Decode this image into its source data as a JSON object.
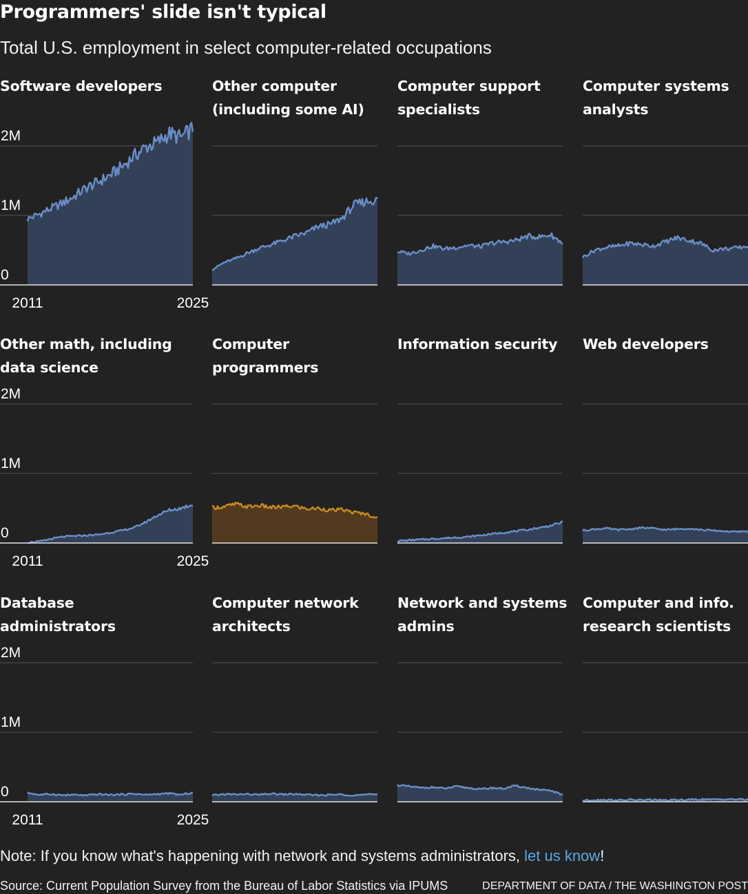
{
  "title": "Programmers' slide isn't typical",
  "subtitle": "Total U.S. employment in select computer-related occupations",
  "note": {
    "text": "Note: If you know what's happening with network and systems administrators, ",
    "link_text": "let us know",
    "suffix": "!"
  },
  "source": "Source: Current Population Survey from the Bureau of Labor Statistics via IPUMS",
  "credit": "DEPARTMENT OF DATA / THE WASHINGTON POST",
  "colors": {
    "background": "#222222",
    "default_line": "#6a8fc8",
    "default_fill": "#334158",
    "highlight_line": "#c98a1e",
    "highlight_fill": "#523a20",
    "gridline": "#4a4a4a",
    "baseline": "#e6e6e6"
  },
  "chart_data": {
    "type": "area",
    "small_multiples": true,
    "y_ticks": [
      "0",
      "1M",
      "2M"
    ],
    "y_tick_values": [
      0,
      1000000,
      2000000
    ],
    "ylim": [
      0,
      2000000
    ],
    "x_ticks": [
      "2011",
      "2025"
    ],
    "xlim": [
      2011,
      2025
    ],
    "grid": true,
    "panels": [
      {
        "name": "Software developers",
        "highlight": false,
        "x": [
          2011,
          2012,
          2013,
          2014,
          2015,
          2016,
          2017,
          2018,
          2019,
          2020,
          2021,
          2022,
          2023,
          2024,
          2025
        ],
        "values": [
          950000,
          1020000,
          1100000,
          1180000,
          1280000,
          1400000,
          1480000,
          1580000,
          1700000,
          1850000,
          1980000,
          2050000,
          2180000,
          2120000,
          2250000
        ]
      },
      {
        "name": "Other computer (including some AI)",
        "highlight": false,
        "x": [
          2011,
          2012,
          2013,
          2014,
          2015,
          2016,
          2017,
          2018,
          2019,
          2020,
          2021,
          2022,
          2023,
          2024,
          2025
        ],
        "values": [
          220000,
          320000,
          380000,
          460000,
          530000,
          580000,
          640000,
          700000,
          750000,
          840000,
          870000,
          960000,
          1150000,
          1200000,
          1220000
        ]
      },
      {
        "name": "Computer support specialists",
        "highlight": false,
        "x": [
          2011,
          2012,
          2013,
          2014,
          2015,
          2016,
          2017,
          2018,
          2019,
          2020,
          2021,
          2022,
          2023,
          2024,
          2025
        ],
        "values": [
          480000,
          450000,
          500000,
          560000,
          520000,
          540000,
          570000,
          550000,
          600000,
          620000,
          640000,
          700000,
          690000,
          720000,
          600000
        ]
      },
      {
        "name": "Computer systems analysts",
        "highlight": false,
        "x": [
          2011,
          2012,
          2013,
          2014,
          2015,
          2016,
          2017,
          2018,
          2019,
          2020,
          2021,
          2022,
          2023,
          2024,
          2025
        ],
        "values": [
          400000,
          500000,
          540000,
          560000,
          600000,
          580000,
          560000,
          620000,
          680000,
          640000,
          600000,
          500000,
          520000,
          530000,
          560000
        ]
      },
      {
        "name": "Other math, including data science",
        "highlight": false,
        "x": [
          2011,
          2012,
          2013,
          2014,
          2015,
          2016,
          2017,
          2018,
          2019,
          2020,
          2021,
          2022,
          2023,
          2024,
          2025
        ],
        "values": [
          10000,
          20000,
          60000,
          90000,
          100000,
          110000,
          120000,
          150000,
          180000,
          220000,
          300000,
          400000,
          470000,
          500000,
          560000
        ]
      },
      {
        "name": "Computer programmers",
        "highlight": true,
        "x": [
          2011,
          2012,
          2013,
          2014,
          2015,
          2016,
          2017,
          2018,
          2019,
          2020,
          2021,
          2022,
          2023,
          2024,
          2025
        ],
        "values": [
          510000,
          520000,
          560000,
          520000,
          540000,
          510000,
          520000,
          530000,
          490000,
          500000,
          470000,
          480000,
          440000,
          420000,
          360000
        ]
      },
      {
        "name": "Information security",
        "highlight": false,
        "x": [
          2011,
          2012,
          2013,
          2014,
          2015,
          2016,
          2017,
          2018,
          2019,
          2020,
          2021,
          2022,
          2023,
          2024,
          2025
        ],
        "values": [
          30000,
          40000,
          50000,
          60000,
          70000,
          80000,
          90000,
          110000,
          130000,
          150000,
          170000,
          190000,
          220000,
          250000,
          300000
        ]
      },
      {
        "name": "Web developers",
        "highlight": false,
        "x": [
          2011,
          2012,
          2013,
          2014,
          2015,
          2016,
          2017,
          2018,
          2019,
          2020,
          2021,
          2022,
          2023,
          2024,
          2025
        ],
        "values": [
          180000,
          200000,
          210000,
          190000,
          200000,
          220000,
          210000,
          190000,
          200000,
          210000,
          190000,
          180000,
          170000,
          160000,
          170000
        ]
      },
      {
        "name": "Database administrators",
        "highlight": false,
        "x": [
          2011,
          2012,
          2013,
          2014,
          2015,
          2016,
          2017,
          2018,
          2019,
          2020,
          2021,
          2022,
          2023,
          2024,
          2025
        ],
        "values": [
          130000,
          100000,
          110000,
          95000,
          100000,
          90000,
          110000,
          100000,
          105000,
          115000,
          100000,
          110000,
          120000,
          100000,
          130000
        ]
      },
      {
        "name": "Computer network architects",
        "highlight": false,
        "x": [
          2011,
          2012,
          2013,
          2014,
          2015,
          2016,
          2017,
          2018,
          2019,
          2020,
          2021,
          2022,
          2023,
          2024,
          2025
        ],
        "values": [
          90000,
          110000,
          105000,
          110000,
          100000,
          115000,
          105000,
          110000,
          100000,
          95000,
          100000,
          105000,
          95000,
          100000,
          110000
        ]
      },
      {
        "name": "Network and systems admins",
        "highlight": false,
        "x": [
          2011,
          2012,
          2013,
          2014,
          2015,
          2016,
          2017,
          2018,
          2019,
          2020,
          2021,
          2022,
          2023,
          2024,
          2025
        ],
        "values": [
          240000,
          220000,
          200000,
          210000,
          190000,
          220000,
          200000,
          180000,
          200000,
          190000,
          230000,
          200000,
          170000,
          160000,
          100000
        ]
      },
      {
        "name": "Computer and info. research scientists",
        "highlight": false,
        "x": [
          2011,
          2012,
          2013,
          2014,
          2015,
          2016,
          2017,
          2018,
          2019,
          2020,
          2021,
          2022,
          2023,
          2024,
          2025
        ],
        "values": [
          20000,
          25000,
          30000,
          20000,
          30000,
          25000,
          30000,
          20000,
          25000,
          30000,
          35000,
          30000,
          40000,
          35000,
          30000
        ]
      }
    ]
  }
}
